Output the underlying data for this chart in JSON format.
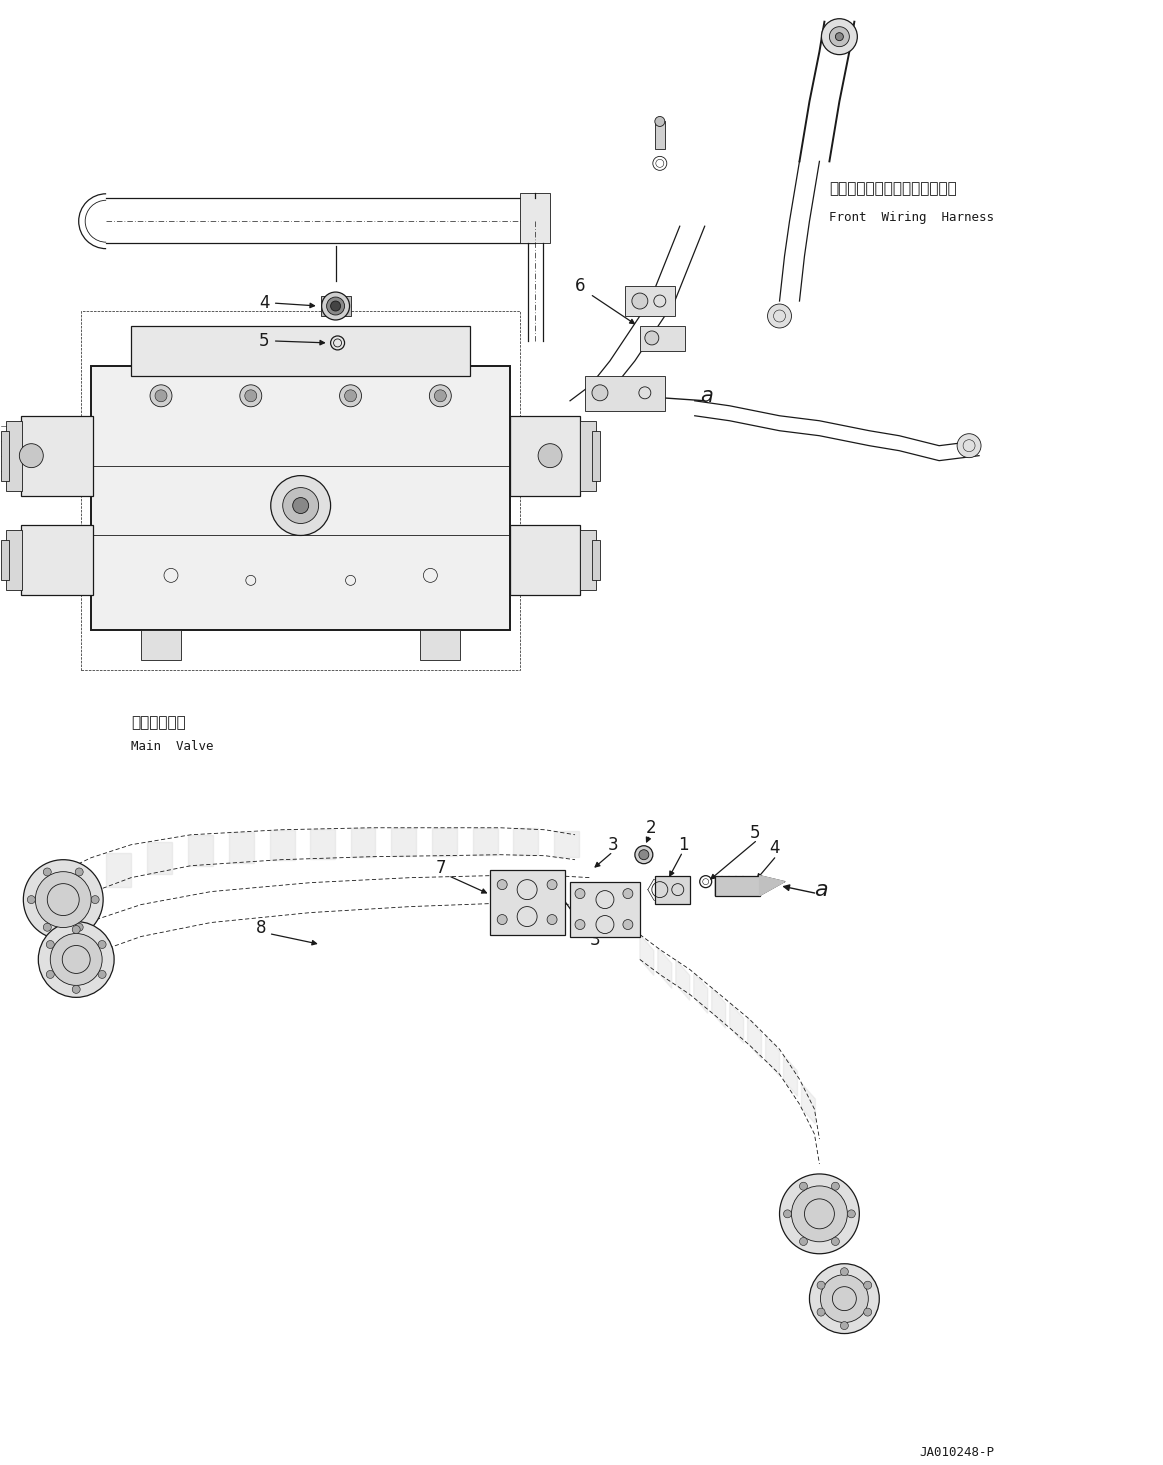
{
  "bg_color": "#ffffff",
  "line_color": "#1a1a1a",
  "fig_width": 11.63,
  "fig_height": 14.65,
  "dpi": 100,
  "part_number": "JA010248-P",
  "label_front_wiring_jp": "フロントワイヤリングハーネス",
  "label_front_wiring_en": "Front  Wiring  Harness",
  "label_main_valve_jp": "メインバルブ",
  "label_main_valve_en": "Main  Valve",
  "font_size_large": 11,
  "font_size_med": 9,
  "font_size_small": 8,
  "font_size_callout": 12
}
